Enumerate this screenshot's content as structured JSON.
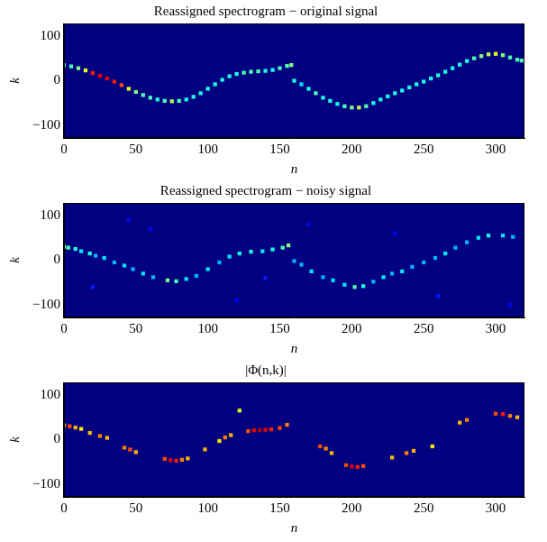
{
  "chart_data": [
    {
      "type": "heatmap",
      "title": "Reassigned spectrogram − original signal",
      "x_label": "n",
      "y_label": "k",
      "xlim": [
        0,
        320
      ],
      "xticks": [
        0,
        50,
        100,
        150,
        200,
        250,
        300
      ],
      "ylim": [
        -128,
        128
      ],
      "yticks": [
        {
          "value": -100,
          "label": "−100"
        },
        0,
        100
      ],
      "grid": false,
      "color_range": [
        0,
        1
      ],
      "cells": {
        "x": [
          0,
          5,
          10,
          15,
          20,
          25,
          30,
          35,
          40,
          45,
          50,
          55,
          60,
          65,
          70,
          75,
          80,
          85,
          90,
          95,
          100,
          105,
          110,
          115,
          120,
          125,
          130,
          135,
          140,
          145,
          150,
          155,
          158,
          160,
          165,
          170,
          175,
          180,
          185,
          190,
          195,
          200,
          205,
          210,
          215,
          220,
          225,
          230,
          235,
          240,
          245,
          250,
          255,
          260,
          265,
          270,
          275,
          280,
          285,
          290,
          295,
          300,
          305,
          310,
          315,
          318
        ],
        "y": [
          35,
          32,
          28,
          23,
          17,
          11,
          5,
          -2,
          -10,
          -18,
          -25,
          -32,
          -38,
          -42,
          -45,
          -46,
          -45,
          -42,
          -36,
          -28,
          -18,
          -8,
          2,
          10,
          15,
          18,
          20,
          21,
          22,
          24,
          28,
          33,
          35,
          0,
          -8,
          -18,
          -28,
          -38,
          -45,
          -52,
          -57,
          -60,
          -60,
          -57,
          -50,
          -42,
          -35,
          -28,
          -22,
          -15,
          -8,
          -2,
          5,
          12,
          20,
          28,
          36,
          44,
          50,
          55,
          59,
          60,
          57,
          52,
          47,
          45
        ],
        "values": [
          0.45,
          0.45,
          0.5,
          0.6,
          0.85,
          0.9,
          0.9,
          0.85,
          0.8,
          0.6,
          0.5,
          0.45,
          0.45,
          0.4,
          0.45,
          0.55,
          0.45,
          0.4,
          0.4,
          0.4,
          0.4,
          0.4,
          0.4,
          0.4,
          0.4,
          0.45,
          0.45,
          0.45,
          0.4,
          0.4,
          0.45,
          0.45,
          0.5,
          0.4,
          0.35,
          0.4,
          0.45,
          0.4,
          0.4,
          0.4,
          0.45,
          0.5,
          0.55,
          0.45,
          0.4,
          0.4,
          0.4,
          0.4,
          0.4,
          0.4,
          0.4,
          0.4,
          0.4,
          0.4,
          0.4,
          0.4,
          0.4,
          0.4,
          0.45,
          0.5,
          0.55,
          0.6,
          0.5,
          0.45,
          0.45,
          0.45
        ]
      }
    },
    {
      "type": "heatmap",
      "title": "Reassigned spectrogram − noisy signal",
      "x_label": "n",
      "y_label": "k",
      "xlim": [
        0,
        320
      ],
      "xticks": [
        0,
        50,
        100,
        150,
        200,
        250,
        300
      ],
      "ylim": [
        -128,
        128
      ],
      "yticks": [
        {
          "value": -100,
          "label": "−100"
        },
        0,
        100
      ],
      "grid": false,
      "color_range": [
        0,
        1
      ],
      "cells": {
        "x": [
          0,
          3,
          8,
          12,
          18,
          22,
          28,
          35,
          42,
          48,
          55,
          62,
          72,
          78,
          85,
          92,
          100,
          108,
          115,
          122,
          130,
          138,
          145,
          152,
          156,
          160,
          165,
          172,
          180,
          187,
          195,
          202,
          208,
          215,
          222,
          228,
          235,
          242,
          250,
          258,
          265,
          272,
          280,
          288,
          295,
          305,
          312,
          20,
          60,
          120,
          170,
          230,
          260,
          310,
          140,
          45
        ],
        "y": [
          30,
          28,
          25,
          20,
          15,
          10,
          5,
          -5,
          -12,
          -20,
          -30,
          -38,
          -45,
          -47,
          -42,
          -35,
          -20,
          -5,
          8,
          15,
          19,
          20,
          24,
          28,
          33,
          -2,
          -10,
          -25,
          -38,
          -45,
          -55,
          -60,
          -58,
          -48,
          -38,
          -30,
          -25,
          -15,
          -5,
          5,
          15,
          28,
          40,
          50,
          55,
          55,
          52,
          -60,
          70,
          -90,
          80,
          60,
          -80,
          -100,
          -40,
          90
        ],
        "values": [
          0.5,
          0.45,
          0.4,
          0.35,
          0.4,
          0.3,
          0.35,
          0.3,
          0.35,
          0.3,
          0.35,
          0.3,
          0.5,
          0.45,
          0.35,
          0.3,
          0.35,
          0.3,
          0.35,
          0.4,
          0.4,
          0.35,
          0.4,
          0.45,
          0.5,
          0.3,
          0.3,
          0.35,
          0.3,
          0.35,
          0.35,
          0.45,
          0.4,
          0.3,
          0.35,
          0.3,
          0.35,
          0.3,
          0.3,
          0.3,
          0.35,
          0.3,
          0.3,
          0.35,
          0.4,
          0.35,
          0.3,
          0.15,
          0.12,
          0.12,
          0.12,
          0.12,
          0.15,
          0.12,
          0.15,
          0.12
        ]
      }
    },
    {
      "type": "heatmap",
      "title": "|Φ(n,k)|",
      "x_label": "n",
      "y_label": "k",
      "xlim": [
        0,
        320
      ],
      "xticks": [
        0,
        50,
        100,
        150,
        200,
        250,
        300
      ],
      "ylim": [
        -128,
        128
      ],
      "yticks": [
        {
          "value": -100,
          "label": "−100"
        },
        0,
        100
      ],
      "grid": false,
      "color_range": [
        0,
        1
      ],
      "cells": {
        "x": [
          0,
          4,
          8,
          12,
          18,
          25,
          30,
          42,
          46,
          50,
          70,
          74,
          78,
          82,
          86,
          98,
          108,
          112,
          116,
          122,
          128,
          132,
          136,
          140,
          144,
          150,
          155,
          178,
          182,
          186,
          196,
          200,
          204,
          208,
          228,
          238,
          243,
          256,
          275,
          280,
          300,
          305,
          310,
          315
        ],
        "y": [
          32,
          30,
          27,
          24,
          15,
          8,
          4,
          -18,
          -22,
          -28,
          -43,
          -46,
          -47,
          -45,
          -42,
          -22,
          -3,
          5,
          10,
          65,
          19,
          21,
          21,
          22,
          23,
          26,
          33,
          -15,
          -20,
          -30,
          -57,
          -60,
          -61,
          -59,
          -40,
          -30,
          -25,
          -15,
          38,
          44,
          58,
          57,
          53,
          50
        ],
        "values": [
          0.7,
          0.8,
          0.7,
          0.65,
          0.7,
          0.75,
          0.7,
          0.75,
          0.8,
          0.7,
          0.8,
          0.9,
          0.85,
          0.75,
          0.7,
          0.7,
          0.65,
          0.75,
          0.7,
          0.6,
          0.8,
          0.9,
          0.95,
          0.9,
          0.85,
          0.8,
          0.75,
          0.8,
          0.75,
          0.7,
          0.8,
          0.9,
          0.85,
          0.8,
          0.7,
          0.75,
          0.7,
          0.65,
          0.7,
          0.75,
          0.8,
          0.85,
          0.75,
          0.7
        ]
      }
    }
  ]
}
